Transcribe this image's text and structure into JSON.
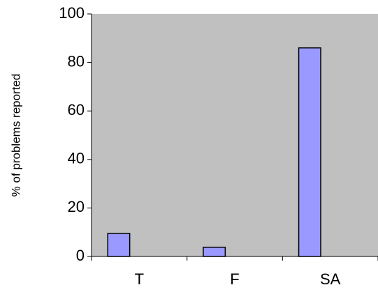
{
  "chart_data": {
    "type": "bar",
    "y_label": "% of problems reported",
    "categories": [
      "T",
      "F",
      "SA"
    ],
    "values": [
      9.5,
      3.8,
      86
    ],
    "color": "#9999ff",
    "plot_background": "#c0c0c0",
    "ylim": [
      0,
      100
    ],
    "yticks": [
      0,
      20,
      40,
      60,
      80,
      100
    ],
    "grid": false
  }
}
